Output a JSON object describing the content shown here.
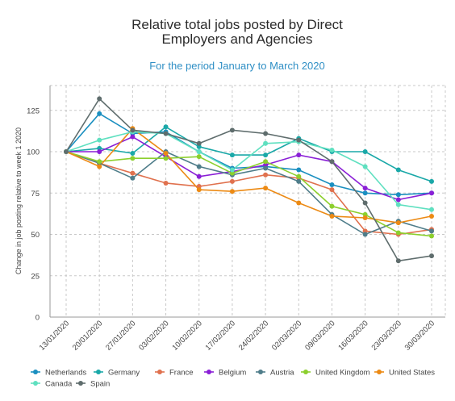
{
  "chart_data": {
    "type": "line",
    "title_line1": "Relative total jobs posted by Direct",
    "title_line2": "Employers and Agencies",
    "subtitle": "For the period January to March 2020",
    "ylabel": "Change in job posting relative to week 1 2020",
    "xlabel": "",
    "ylim": [
      0,
      140
    ],
    "yticks": [
      0,
      25,
      50,
      75,
      100,
      125
    ],
    "grid": true,
    "legend_position": "bottom",
    "categories": [
      "13/01/2020",
      "20/01/2020",
      "27/01/2020",
      "03/02/2020",
      "10/02/2020",
      "17/02/2020",
      "24/02/2020",
      "02/03/2020",
      "09/03/2020",
      "16/03/2020",
      "23/03/2020",
      "30/03/2020"
    ],
    "series": [
      {
        "name": "Netherlands",
        "color": "#1a8fc0",
        "values": [
          100,
          123,
          111,
          112,
          100,
          90,
          91,
          89,
          80,
          75,
          74,
          75
        ]
      },
      {
        "name": "Germany",
        "color": "#1aa8a8",
        "values": [
          100,
          102,
          99,
          115,
          103,
          98,
          98,
          108,
          100,
          100,
          89,
          82
        ]
      },
      {
        "name": "France",
        "color": "#e0714e",
        "values": [
          100,
          93,
          87,
          81,
          79,
          82,
          86,
          84,
          77,
          52,
          50,
          53
        ]
      },
      {
        "name": "Belgium",
        "color": "#8a1fd6",
        "values": [
          100,
          100,
          109,
          97,
          85,
          88,
          92,
          98,
          94,
          78,
          71,
          75
        ]
      },
      {
        "name": "Austria",
        "color": "#4f7d8a",
        "values": [
          100,
          93,
          84,
          100,
          91,
          86,
          90,
          82,
          62,
          50,
          58,
          52
        ]
      },
      {
        "name": "United Kingdom",
        "color": "#8ccf2d",
        "values": [
          100,
          94,
          96,
          96,
          97,
          87,
          94,
          85,
          67,
          62,
          51,
          49
        ]
      },
      {
        "name": "United States",
        "color": "#ec8a14",
        "values": [
          100,
          91,
          114,
          99,
          77,
          76,
          78,
          69,
          61,
          60,
          57,
          61
        ]
      },
      {
        "name": "Canada",
        "color": "#5fe0c0",
        "values": [
          100,
          107,
          112,
          111,
          100,
          89,
          105,
          106,
          101,
          91,
          68,
          65
        ]
      },
      {
        "name": "Spain",
        "color": "#5f6d6d",
        "values": [
          100,
          132,
          113,
          111,
          105,
          113,
          111,
          107,
          94,
          69,
          34,
          37
        ]
      }
    ]
  }
}
